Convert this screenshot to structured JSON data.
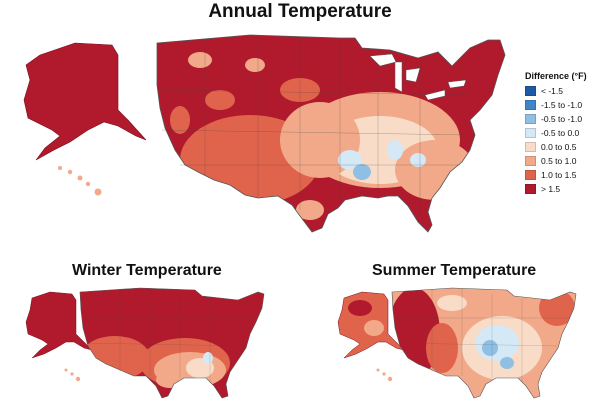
{
  "maps": {
    "annual": {
      "title": "Annual Temperature"
    },
    "winter": {
      "title": "Winter Temperature"
    },
    "summer": {
      "title": "Summer Temperature"
    }
  },
  "legend": {
    "title": "Difference (°F)",
    "items": [
      {
        "label": "< -1.5",
        "color": "#1c5aa8"
      },
      {
        "label": "-1.5 to -1.0",
        "color": "#3f86c9"
      },
      {
        "label": "-0.5 to -1.0",
        "color": "#8fbfe3"
      },
      {
        "label": "-0.5 to 0.0",
        "color": "#d4e8f5"
      },
      {
        "label": "0.0 to 0.5",
        "color": "#f9dcc8"
      },
      {
        "label": "0.5 to 1.0",
        "color": "#f1a98a"
      },
      {
        "label": "1.0 to 1.5",
        "color": "#e0644c"
      },
      {
        "label": "> 1.5",
        "color": "#b01a2c"
      }
    ]
  }
}
